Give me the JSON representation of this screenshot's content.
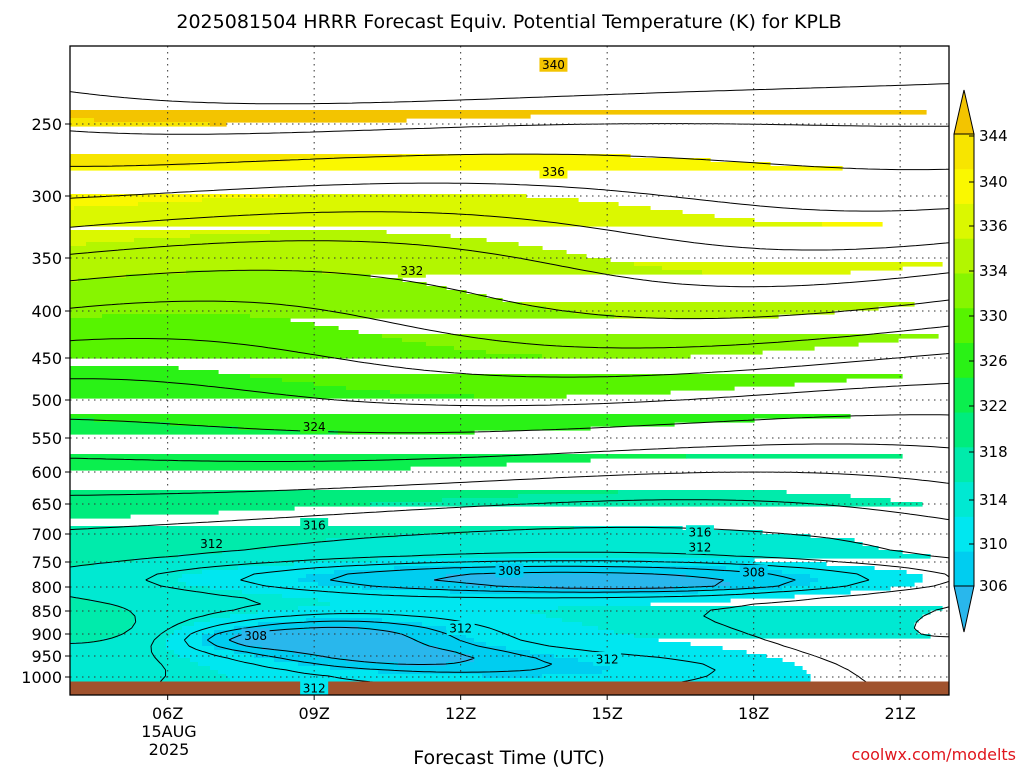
{
  "chart_data": {
    "type": "heatmap",
    "title": "2025081504 HRRR Forecast Equiv. Potential Temperature (K) for KPLB",
    "xlabel": "Forecast Time (UTC)",
    "ylabel": "",
    "x_ticks": [
      "06Z",
      "09Z",
      "12Z",
      "15Z",
      "18Z",
      "21Z"
    ],
    "x_date_labels": [
      "15AUG",
      "2025"
    ],
    "y_ticks": [
      250,
      300,
      350,
      400,
      450,
      500,
      550,
      600,
      650,
      700,
      750,
      800,
      850,
      900,
      950,
      1000
    ],
    "y_scale": "log-pressure (inverted)",
    "xlim_hours": [
      4,
      22
    ],
    "ylim_hpa": [
      200,
      1020
    ],
    "contour_interval_k": 2,
    "colorbar": {
      "ticks": [
        306,
        310,
        314,
        318,
        322,
        326,
        330,
        334,
        336,
        340,
        344
      ],
      "colors": [
        "#29b7ec",
        "#00cdf0",
        "#00e7f0",
        "#00e9d2",
        "#00ebab",
        "#00ec7d",
        "#0bef4e",
        "#2af216",
        "#57f400",
        "#87f500",
        "#b3f600",
        "#dbf800",
        "#faf800",
        "#f7e500",
        "#f3c400"
      ],
      "extend": "both"
    },
    "contour_labels": [
      {
        "value": "340",
        "x_hour": 13.9,
        "p_hpa": 212
      },
      {
        "value": "336",
        "x_hour": 13.9,
        "p_hpa": 283
      },
      {
        "value": "332",
        "x_hour": 11.0,
        "p_hpa": 362
      },
      {
        "value": "324",
        "x_hour": 9.0,
        "p_hpa": 535
      },
      {
        "value": "316",
        "x_hour": 9.0,
        "p_hpa": 685
      },
      {
        "value": "316",
        "x_hour": 16.9,
        "p_hpa": 697
      },
      {
        "value": "312",
        "x_hour": 6.9,
        "p_hpa": 717
      },
      {
        "value": "312",
        "x_hour": 16.9,
        "p_hpa": 723
      },
      {
        "value": "308",
        "x_hour": 13.0,
        "p_hpa": 767
      },
      {
        "value": "308",
        "x_hour": 18.0,
        "p_hpa": 770
      },
      {
        "value": "312",
        "x_hour": 12.0,
        "p_hpa": 887
      },
      {
        "value": "308",
        "x_hour": 7.8,
        "p_hpa": 903
      },
      {
        "value": "312",
        "x_hour": 15.0,
        "p_hpa": 957
      },
      {
        "value": "312",
        "x_hour": 9.0,
        "p_hpa": 1012
      }
    ],
    "ground_color": "#a0522d",
    "ground_below_hpa": 1005
  },
  "credit": "coolwx.com/modelts"
}
